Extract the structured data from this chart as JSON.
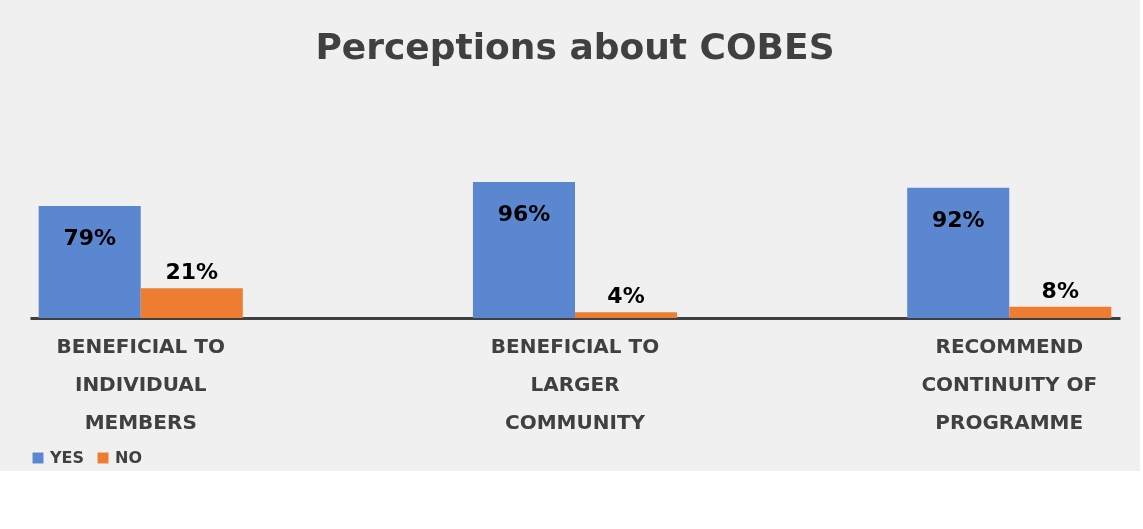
{
  "chart_data": {
    "type": "bar",
    "title": "Perceptions about COBES",
    "categories": [
      "BENEFICIAL TO INDIVIDUAL MEMBERS",
      "BENEFICIAL TO LARGER COMMUNITY",
      "RECOMMEND CONTINUITY OF PROGRAMME"
    ],
    "series": [
      {
        "name": "YES",
        "color": "#5b87d0",
        "values": [
          79,
          96,
          92
        ],
        "value_labels": [
          "79%",
          "96%",
          "92%"
        ]
      },
      {
        "name": "NO",
        "color": "#ed7d31",
        "values": [
          21,
          4,
          8
        ],
        "value_labels": [
          "21%",
          "4%",
          "8%"
        ]
      }
    ],
    "legend": "bottom",
    "grid": false
  }
}
